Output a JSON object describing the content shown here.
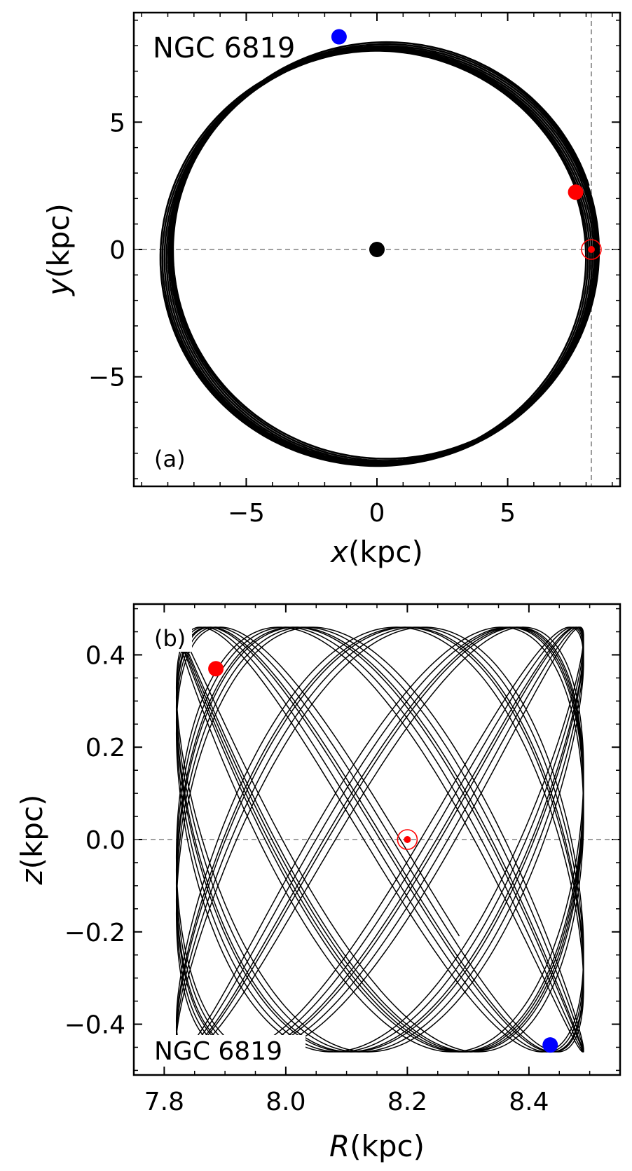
{
  "chart_data": [
    {
      "panel": "(a)",
      "type": "line",
      "object_label": "NGC 6819",
      "xlabel": "x(kpc)",
      "ylabel": "y(kpc)",
      "xlim": [
        -9.3,
        9.3
      ],
      "ylim": [
        -9.3,
        9.3
      ],
      "xticks": [
        -5,
        0,
        5
      ],
      "yticks": [
        -5,
        0,
        5
      ],
      "xtick_labels": [
        "−5",
        "0",
        "5"
      ],
      "ytick_labels": [
        "−5",
        "0",
        "5"
      ],
      "grid": false,
      "reference_lines": {
        "horizontal_y": 0,
        "vertical_x": 8.2
      },
      "orbit": {
        "description": "ring of near-circular loops",
        "radius_min": 7.8,
        "radius_max": 8.5,
        "loops": 9
      },
      "markers": [
        {
          "label": "galactic-center",
          "x": 0,
          "y": 0,
          "color": "#000000"
        },
        {
          "label": "sun",
          "x": 8.2,
          "y": 0,
          "color": "#ff0000"
        },
        {
          "label": "orbit-start",
          "x": 7.6,
          "y": 2.25,
          "color": "#ff0000"
        },
        {
          "label": "orbit-end",
          "x": -1.45,
          "y": 8.35,
          "color": "#0000ff"
        }
      ]
    },
    {
      "panel": "(b)",
      "type": "line",
      "object_label": "NGC 6819",
      "xlabel": "R(kpc)",
      "ylabel": "z(kpc)",
      "xlim": [
        7.75,
        8.55
      ],
      "ylim": [
        -0.51,
        0.51
      ],
      "xticks": [
        7.8,
        8.0,
        8.2,
        8.4
      ],
      "yticks": [
        -0.4,
        -0.2,
        0.0,
        0.2,
        0.4
      ],
      "xtick_labels": [
        "7.8",
        "8.0",
        "8.2",
        "8.4"
      ],
      "ytick_labels": [
        "−0.4",
        "−0.2",
        "0.0",
        "0.2",
        "0.4"
      ],
      "grid": false,
      "reference_lines": {
        "horizontal_y": 0
      },
      "orbit": {
        "description": "meridional box orbit",
        "R_min": 7.82,
        "R_max": 8.49,
        "z_max": 0.46
      },
      "markers": [
        {
          "label": "sun",
          "x": 8.2,
          "y": 0.0,
          "color": "#ff0000"
        },
        {
          "label": "orbit-start",
          "x": 7.885,
          "y": 0.37,
          "color": "#ff0000"
        },
        {
          "label": "orbit-end",
          "x": 8.435,
          "y": -0.445,
          "color": "#0000ff"
        }
      ]
    }
  ]
}
